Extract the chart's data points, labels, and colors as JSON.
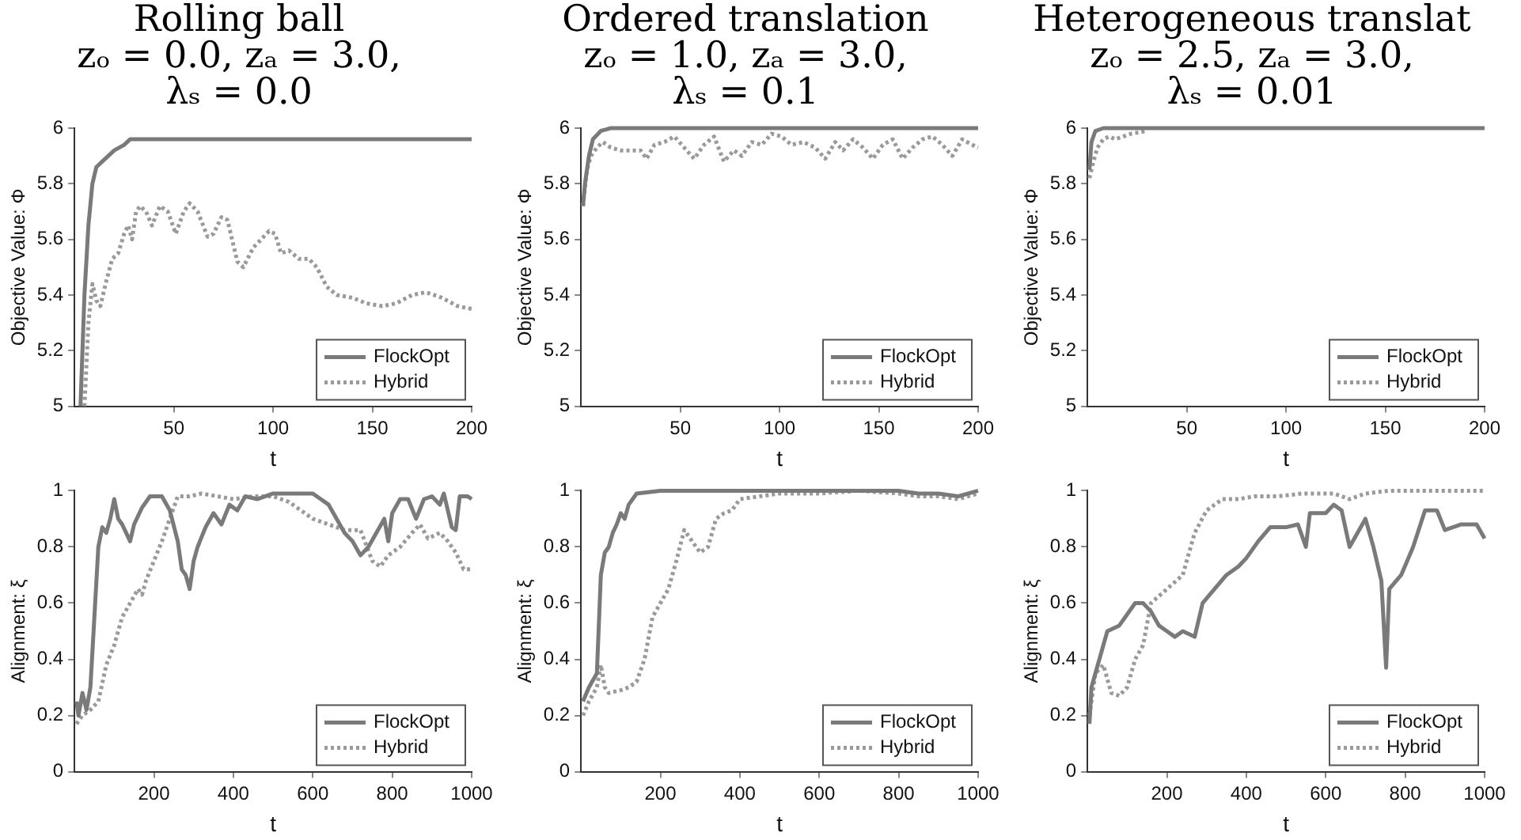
{
  "chart_data": [
    {
      "type": "line",
      "title": "Rolling ball\nzₒ = 0.0, zₐ = 3.0,\nλₛ = 0.0",
      "xlabel": "t",
      "ylabel": "Objective Value: Φ",
      "xlim": [
        0,
        200
      ],
      "xticks": [
        50,
        100,
        150,
        200
      ],
      "ylim": [
        5,
        6
      ],
      "yticks": [
        5,
        5.2,
        5.4,
        5.6,
        5.8,
        6
      ],
      "legend": "bottom right",
      "series": [
        {
          "name": "FlockOpt",
          "color": "#7a7a7a",
          "line_style": "solid",
          "x": [
            3,
            5,
            7,
            9,
            11,
            14,
            17,
            20,
            25,
            28,
            40,
            200
          ],
          "values": [
            5,
            5.4,
            5.65,
            5.8,
            5.86,
            5.88,
            5.9,
            5.92,
            5.94,
            5.96,
            5.96,
            5.96
          ]
        },
        {
          "name": "Hybrid",
          "color": "#9a9a9a",
          "line_style": "dotted",
          "x": [
            5,
            7,
            9,
            11,
            13,
            16,
            19,
            22,
            25,
            27,
            29,
            31,
            33,
            36,
            39,
            43,
            47,
            51,
            55,
            58,
            62,
            67,
            70,
            74,
            77,
            82,
            85,
            90,
            94,
            98,
            101,
            104,
            108,
            113,
            118,
            122,
            127,
            132,
            140,
            147,
            155,
            162,
            170,
            177,
            185,
            193,
            200
          ],
          "values": [
            5,
            5.3,
            5.44,
            5.38,
            5.36,
            5.45,
            5.53,
            5.55,
            5.62,
            5.65,
            5.6,
            5.7,
            5.72,
            5.7,
            5.65,
            5.72,
            5.7,
            5.62,
            5.7,
            5.73,
            5.7,
            5.61,
            5.62,
            5.68,
            5.67,
            5.52,
            5.5,
            5.57,
            5.6,
            5.63,
            5.62,
            5.55,
            5.56,
            5.53,
            5.53,
            5.5,
            5.43,
            5.4,
            5.39,
            5.37,
            5.36,
            5.37,
            5.4,
            5.41,
            5.39,
            5.36,
            5.35
          ]
        }
      ]
    },
    {
      "type": "line",
      "title": "Ordered translation\nzₒ = 1.0, zₐ = 3.0,\nλₛ = 0.1",
      "xlabel": "t",
      "ylabel": "Objective Value: Φ",
      "xlim": [
        0,
        200
      ],
      "xticks": [
        50,
        100,
        150,
        200
      ],
      "ylim": [
        5,
        6
      ],
      "yticks": [
        5,
        5.2,
        5.4,
        5.6,
        5.8,
        6
      ],
      "legend": "bottom right",
      "series": [
        {
          "name": "FlockOpt",
          "color": "#7a7a7a",
          "line_style": "solid",
          "x": [
            1,
            2,
            4,
            6,
            10,
            15,
            200
          ],
          "values": [
            5.72,
            5.8,
            5.9,
            5.96,
            5.99,
            6,
            6
          ]
        },
        {
          "name": "Hybrid",
          "color": "#9a9a9a",
          "line_style": "dotted",
          "x": [
            1,
            3,
            5,
            8,
            11,
            15,
            20,
            25,
            30,
            33,
            37,
            42,
            47,
            52,
            57,
            62,
            67,
            72,
            77,
            81,
            86,
            91,
            96,
            101,
            106,
            112,
            118,
            123,
            128,
            132,
            137,
            142,
            147,
            152,
            157,
            162,
            167,
            172,
            177,
            182,
            187,
            192,
            197,
            200
          ],
          "values": [
            5.72,
            5.85,
            5.9,
            5.93,
            5.95,
            5.93,
            5.92,
            5.92,
            5.92,
            5.89,
            5.94,
            5.95,
            5.97,
            5.93,
            5.89,
            5.94,
            5.97,
            5.88,
            5.92,
            5.9,
            5.95,
            5.94,
            5.98,
            5.97,
            5.94,
            5.95,
            5.93,
            5.89,
            5.95,
            5.92,
            5.96,
            5.93,
            5.89,
            5.94,
            5.96,
            5.89,
            5.93,
            5.96,
            5.97,
            5.94,
            5.9,
            5.96,
            5.94,
            5.93
          ]
        }
      ]
    },
    {
      "type": "line",
      "title": "Heterogeneous translat\nzₒ = 2.5, zₐ = 3.0,\nλₛ = 0.01",
      "xlabel": "t",
      "ylabel": "Objective Value: Φ",
      "xlim": [
        0,
        200
      ],
      "xticks": [
        50,
        100,
        150,
        200
      ],
      "ylim": [
        5,
        6
      ],
      "yticks": [
        5,
        5.2,
        5.4,
        5.6,
        5.8,
        6
      ],
      "legend": "bottom right",
      "series": [
        {
          "name": "FlockOpt",
          "color": "#7a7a7a",
          "line_style": "solid",
          "x": [
            1,
            2,
            4,
            8,
            200
          ],
          "values": [
            5.85,
            5.95,
            5.99,
            6,
            6
          ]
        },
        {
          "name": "Hybrid",
          "color": "#9a9a9a",
          "line_style": "dotted",
          "x": [
            1,
            3,
            5,
            8,
            11,
            14,
            18,
            22,
            30
          ],
          "values": [
            5.82,
            5.88,
            5.93,
            5.96,
            5.97,
            5.96,
            5.97,
            5.98,
            5.99
          ]
        }
      ]
    },
    {
      "type": "line",
      "xlabel": "t",
      "ylabel": "Alignment: ξ",
      "xlim": [
        0,
        1000
      ],
      "xticks": [
        200,
        400,
        600,
        800,
        1000
      ],
      "ylim": [
        0,
        1
      ],
      "yticks": [
        0,
        0.2,
        0.4,
        0.6,
        0.8,
        1
      ],
      "legend": "bottom right",
      "series": [
        {
          "name": "FlockOpt",
          "color": "#7a7a7a",
          "line_style": "solid",
          "x": [
            5,
            10,
            20,
            30,
            40,
            50,
            60,
            70,
            80,
            90,
            100,
            110,
            120,
            130,
            140,
            150,
            170,
            190,
            220,
            240,
            260,
            270,
            280,
            290,
            300,
            310,
            330,
            350,
            370,
            390,
            410,
            430,
            460,
            500,
            550,
            600,
            620,
            640,
            660,
            680,
            700,
            720,
            740,
            760,
            780,
            790,
            800,
            820,
            840,
            860,
            880,
            900,
            920,
            930,
            950,
            960,
            970,
            990,
            1000
          ],
          "values": [
            0.25,
            0.2,
            0.28,
            0.22,
            0.3,
            0.55,
            0.8,
            0.87,
            0.85,
            0.9,
            0.97,
            0.9,
            0.88,
            0.85,
            0.82,
            0.88,
            0.94,
            0.98,
            0.98,
            0.93,
            0.82,
            0.72,
            0.7,
            0.65,
            0.75,
            0.8,
            0.87,
            0.92,
            0.88,
            0.95,
            0.93,
            0.98,
            0.97,
            0.99,
            0.99,
            0.99,
            0.97,
            0.95,
            0.9,
            0.85,
            0.82,
            0.77,
            0.8,
            0.85,
            0.9,
            0.82,
            0.92,
            0.97,
            0.97,
            0.9,
            0.97,
            0.98,
            0.95,
            0.99,
            0.87,
            0.86,
            0.98,
            0.98,
            0.97
          ]
        },
        {
          "name": "Hybrid",
          "color": "#9a9a9a",
          "line_style": "dotted",
          "x": [
            5,
            20,
            40,
            60,
            80,
            100,
            120,
            140,
            160,
            170,
            180,
            200,
            220,
            240,
            260,
            290,
            320,
            360,
            400,
            450,
            500,
            540,
            560,
            600,
            640,
            680,
            720,
            750,
            770,
            790,
            820,
            850,
            870,
            890,
            920,
            940,
            960,
            980,
            1000
          ],
          "values": [
            0.17,
            0.2,
            0.22,
            0.25,
            0.38,
            0.45,
            0.55,
            0.6,
            0.65,
            0.63,
            0.68,
            0.75,
            0.82,
            0.9,
            0.98,
            0.98,
            0.99,
            0.98,
            0.97,
            0.98,
            0.98,
            0.96,
            0.94,
            0.9,
            0.88,
            0.86,
            0.86,
            0.75,
            0.73,
            0.77,
            0.8,
            0.85,
            0.88,
            0.83,
            0.85,
            0.82,
            0.78,
            0.72,
            0.72
          ]
        }
      ]
    },
    {
      "type": "line",
      "xlabel": "t",
      "ylabel": "Alignment: ξ",
      "xlim": [
        0,
        1000
      ],
      "xticks": [
        200,
        400,
        600,
        800,
        1000
      ],
      "ylim": [
        0,
        1
      ],
      "yticks": [
        0,
        0.2,
        0.4,
        0.6,
        0.8,
        1
      ],
      "legend": "bottom right",
      "series": [
        {
          "name": "FlockOpt",
          "color": "#7a7a7a",
          "line_style": "solid",
          "x": [
            5,
            20,
            40,
            50,
            60,
            70,
            80,
            90,
            100,
            110,
            120,
            140,
            200,
            800,
            850,
            900,
            950,
            1000
          ],
          "values": [
            0.25,
            0.3,
            0.35,
            0.7,
            0.78,
            0.8,
            0.85,
            0.88,
            0.92,
            0.9,
            0.95,
            0.99,
            1,
            1,
            0.99,
            0.99,
            0.98,
            1
          ]
        },
        {
          "name": "Hybrid",
          "color": "#9a9a9a",
          "line_style": "dotted",
          "x": [
            5,
            20,
            40,
            50,
            60,
            70,
            100,
            120,
            140,
            160,
            180,
            200,
            220,
            240,
            260,
            280,
            300,
            320,
            340,
            360,
            380,
            400,
            450,
            500,
            600,
            700,
            800,
            850,
            900,
            950,
            1000
          ],
          "values": [
            0.2,
            0.25,
            0.3,
            0.38,
            0.3,
            0.28,
            0.29,
            0.3,
            0.32,
            0.4,
            0.55,
            0.6,
            0.65,
            0.75,
            0.86,
            0.82,
            0.78,
            0.8,
            0.9,
            0.92,
            0.93,
            0.97,
            0.98,
            0.99,
            0.99,
            1,
            0.99,
            0.98,
            0.98,
            0.97,
            0.99
          ]
        }
      ]
    },
    {
      "type": "line",
      "xlabel": "t",
      "ylabel": "Alignment: ξ",
      "xlim": [
        0,
        1000
      ],
      "xticks": [
        200,
        400,
        600,
        800,
        1000
      ],
      "ylim": [
        0,
        1
      ],
      "yticks": [
        0,
        0.2,
        0.4,
        0.6,
        0.8,
        1
      ],
      "legend": "bottom right",
      "series": [
        {
          "name": "FlockOpt",
          "color": "#7a7a7a",
          "line_style": "solid",
          "x": [
            5,
            10,
            30,
            50,
            80,
            100,
            120,
            140,
            160,
            180,
            200,
            220,
            240,
            270,
            290,
            320,
            350,
            380,
            400,
            430,
            460,
            500,
            530,
            550,
            560,
            600,
            620,
            640,
            660,
            680,
            700,
            720,
            740,
            752,
            760,
            790,
            820,
            850,
            880,
            900,
            940,
            980,
            1000
          ],
          "values": [
            0.17,
            0.3,
            0.4,
            0.5,
            0.52,
            0.56,
            0.6,
            0.6,
            0.57,
            0.52,
            0.5,
            0.48,
            0.5,
            0.48,
            0.6,
            0.65,
            0.7,
            0.73,
            0.76,
            0.82,
            0.87,
            0.87,
            0.88,
            0.8,
            0.92,
            0.92,
            0.95,
            0.93,
            0.8,
            0.85,
            0.9,
            0.8,
            0.68,
            0.37,
            0.65,
            0.7,
            0.8,
            0.93,
            0.93,
            0.86,
            0.88,
            0.88,
            0.83
          ]
        },
        {
          "name": "Hybrid",
          "color": "#9a9a9a",
          "line_style": "dotted",
          "x": [
            5,
            20,
            40,
            60,
            80,
            100,
            120,
            140,
            160,
            200,
            240,
            270,
            300,
            340,
            380,
            420,
            480,
            540,
            620,
            660,
            700,
            760,
            1000
          ],
          "values": [
            0.2,
            0.35,
            0.38,
            0.28,
            0.27,
            0.3,
            0.4,
            0.45,
            0.6,
            0.65,
            0.7,
            0.85,
            0.93,
            0.97,
            0.97,
            0.98,
            0.98,
            0.99,
            0.99,
            0.97,
            0.99,
            1,
            1
          ]
        }
      ]
    }
  ]
}
